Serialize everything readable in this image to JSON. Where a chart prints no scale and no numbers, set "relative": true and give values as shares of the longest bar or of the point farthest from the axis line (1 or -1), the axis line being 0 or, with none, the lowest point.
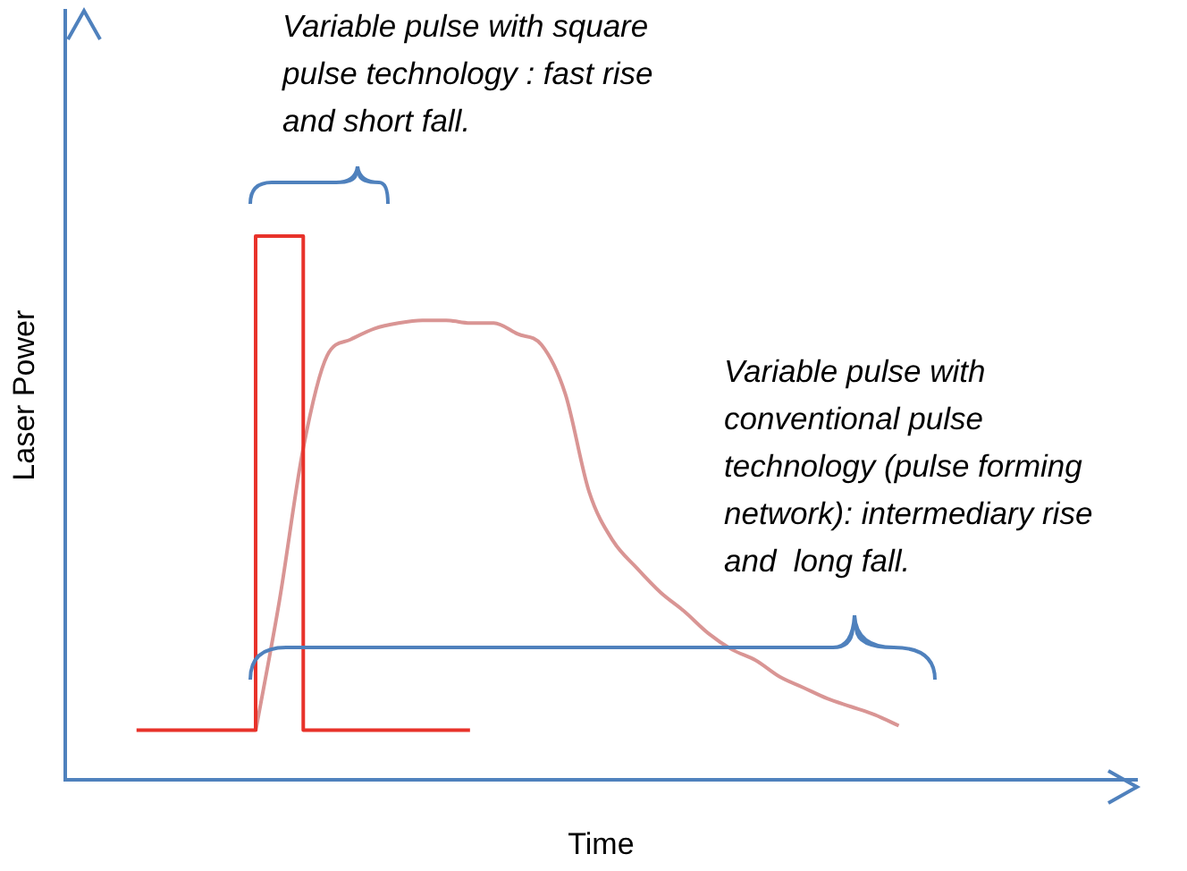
{
  "chart_data": {
    "type": "line",
    "xlabel": "Time",
    "ylabel": "Laser Power",
    "relative": true,
    "grid": false,
    "legend": false,
    "marker": "none",
    "categories": [
      null,
      null,
      null,
      null,
      null,
      null,
      null,
      null,
      null,
      null,
      null,
      null,
      null,
      null,
      null,
      null,
      null,
      null,
      null,
      null,
      null,
      null,
      null,
      null,
      null,
      null,
      null,
      null,
      null,
      null,
      null,
      null,
      null,
      null,
      null,
      null,
      null,
      null,
      null,
      null,
      null,
      null,
      null,
      null,
      null,
      null
    ],
    "series": [
      {
        "type": "step",
        "color": "#e8322a",
        "values": [
          null,
          null,
          null,
          0.092,
          0.092,
          0.092,
          0.092,
          0.092,
          0.092,
          1,
          1,
          0.092,
          0.092,
          0.092,
          0.092,
          0.092,
          0.092,
          0.092,
          null,
          null,
          null,
          null,
          null,
          null,
          null,
          null,
          null,
          null,
          null,
          null,
          null,
          null,
          null,
          null,
          null,
          null,
          null,
          null,
          null,
          null,
          null,
          null,
          null,
          null,
          null,
          null
        ]
      },
      {
        "color": "#d99594",
        "values": [
          null,
          null,
          null,
          null,
          null,
          null,
          null,
          null,
          0.09,
          0.33,
          0.61,
          0.78,
          0.81,
          0.83,
          0.84,
          0.845,
          0.845,
          0.84,
          0.84,
          0.82,
          0.8,
          0.71,
          0.53,
          0.44,
          0.39,
          0.345,
          0.31,
          0.27,
          0.24,
          0.22,
          0.19,
          0.17,
          0.15,
          0.135,
          0.12,
          0.1,
          null,
          null,
          null,
          null,
          null,
          null,
          null,
          null,
          null,
          null
        ]
      }
    ],
    "annotations": [
      "Variable pulse with square\npulse technology : fast rise\nand short fall.",
      "Variable pulse with\nconventional pulse\ntechnology (pulse forming\nnetwork): intermediary rise\nand  long fall."
    ]
  }
}
